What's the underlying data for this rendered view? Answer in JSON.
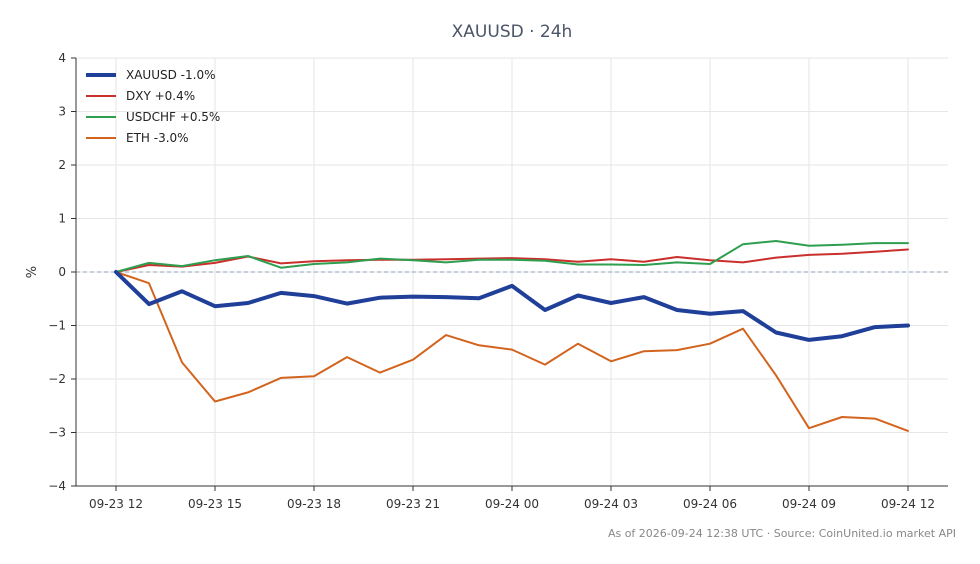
{
  "chart_data": {
    "type": "line",
    "title": "XAUUSD · 24h",
    "xlabel": "",
    "ylabel": "%",
    "ylim": [
      -4,
      4
    ],
    "yticks": [
      -4,
      -3,
      -2,
      -1,
      0,
      1,
      2,
      3,
      4
    ],
    "ytick_labels": [
      "−4",
      "−3",
      "−2",
      "−1",
      "0",
      "1",
      "2",
      "3",
      "4"
    ],
    "x": [
      "09-23 12",
      "09-23 13",
      "09-23 14",
      "09-23 15",
      "09-23 16",
      "09-23 17",
      "09-23 18",
      "09-23 19",
      "09-23 20",
      "09-23 21",
      "09-23 22",
      "09-23 23",
      "09-24 00",
      "09-24 01",
      "09-24 02",
      "09-24 03",
      "09-24 04",
      "09-24 05",
      "09-24 06",
      "09-24 07",
      "09-24 08",
      "09-24 09",
      "09-24 10",
      "09-24 11",
      "09-24 12"
    ],
    "xtick_labels": [
      "09-23 12",
      "09-23 15",
      "09-23 18",
      "09-23 21",
      "09-24 00",
      "09-24 03",
      "09-24 06",
      "09-24 09",
      "09-24 12"
    ],
    "xtick_index": [
      0,
      3,
      6,
      9,
      12,
      15,
      18,
      21,
      24
    ],
    "grid": true,
    "legend_position": "top-left",
    "series": [
      {
        "name": "XAUUSD -1.0%",
        "color": "#1f3f99",
        "width": 4,
        "values": [
          0.0,
          -0.6,
          -0.36,
          -0.64,
          -0.58,
          -0.39,
          -0.45,
          -0.59,
          -0.48,
          -0.46,
          -0.47,
          -0.49,
          -0.26,
          -0.71,
          -0.44,
          -0.58,
          -0.47,
          -0.71,
          -0.78,
          -0.73,
          -1.13,
          -1.27,
          -1.2,
          -1.03,
          -1.0
        ]
      },
      {
        "name": "DXY +0.4%",
        "color": "#c9302c",
        "width": 2,
        "values": [
          0.0,
          0.13,
          0.1,
          0.17,
          0.29,
          0.16,
          0.2,
          0.22,
          0.23,
          0.23,
          0.24,
          0.25,
          0.26,
          0.24,
          0.19,
          0.24,
          0.19,
          0.28,
          0.22,
          0.18,
          0.27,
          0.32,
          0.34,
          0.38,
          0.42
        ]
      },
      {
        "name": "USDCHF +0.5%",
        "color": "#2e9e4f",
        "width": 2,
        "values": [
          0.0,
          0.17,
          0.11,
          0.22,
          0.3,
          0.08,
          0.15,
          0.18,
          0.25,
          0.22,
          0.18,
          0.23,
          0.23,
          0.21,
          0.14,
          0.14,
          0.13,
          0.18,
          0.15,
          0.52,
          0.58,
          0.49,
          0.51,
          0.54,
          0.54
        ]
      },
      {
        "name": "ETH -3.0%",
        "color": "#d2641e",
        "width": 2,
        "values": [
          0.0,
          -0.21,
          -1.69,
          -2.42,
          -2.25,
          -1.98,
          -1.95,
          -1.59,
          -1.88,
          -1.64,
          -1.18,
          -1.37,
          -1.45,
          -1.73,
          -1.34,
          -1.67,
          -1.48,
          -1.46,
          -1.34,
          -1.06,
          -1.93,
          -2.92,
          -2.71,
          -2.74,
          -2.97
        ]
      }
    ]
  },
  "footer": {
    "text": "As of 2026-09-24 12:38 UTC · Source: CoinUnited.io market API"
  }
}
